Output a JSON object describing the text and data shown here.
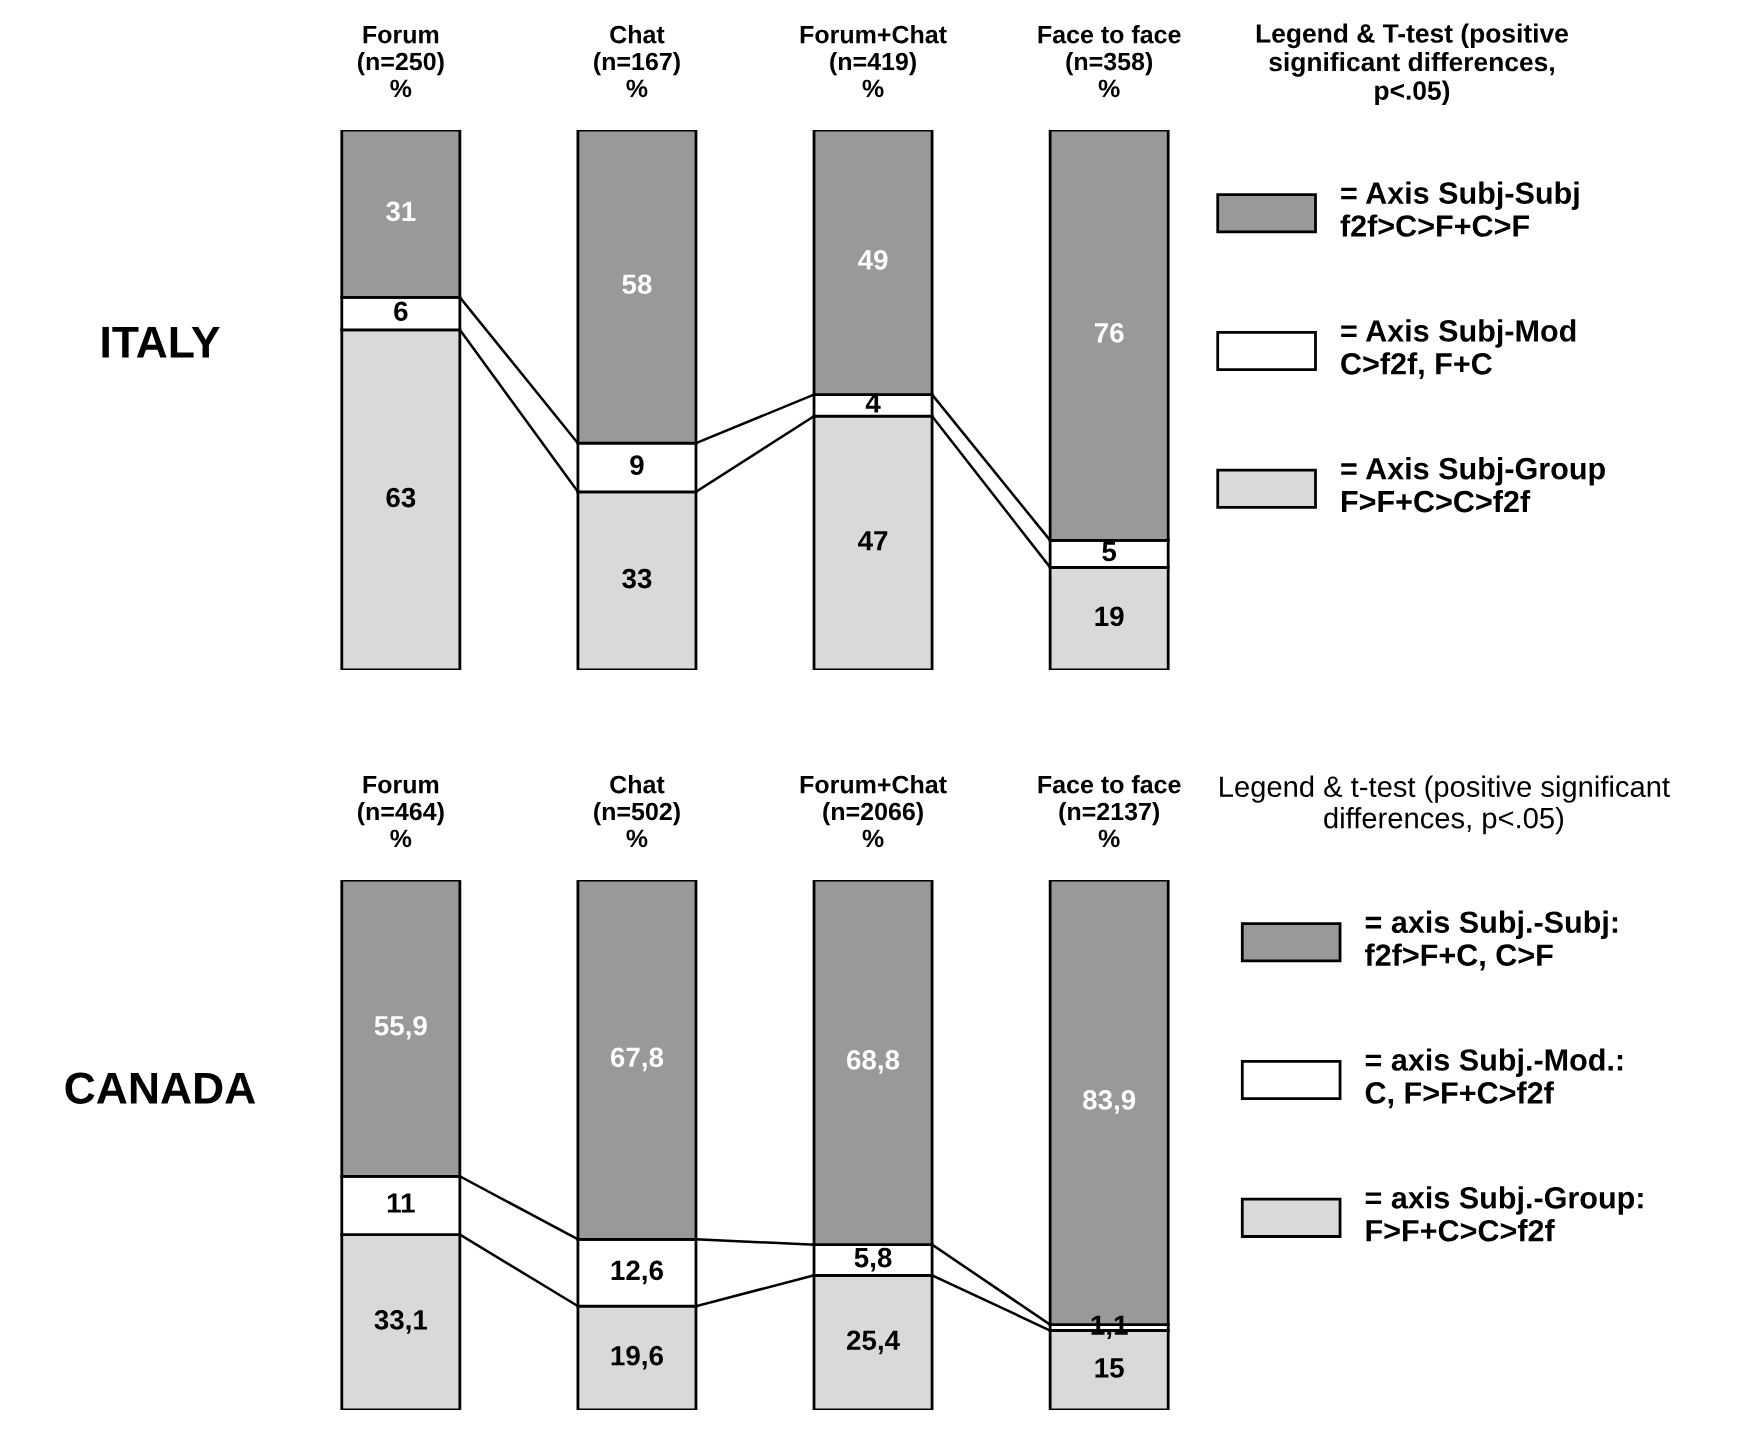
{
  "chart_data": [
    {
      "type": "bar",
      "stacked": true,
      "ylabel": "ITALY",
      "legend": "right",
      "legend_title": "Legend & T-test (positive\nsignificant differences,\np<.05)",
      "tick_labels": "x",
      "ylim": [
        0,
        100
      ],
      "categories": [
        "Forum\n(n=250)\n%",
        "Chat\n(n=167)\n%",
        "Forum+Chat\n(n=419)\n%",
        "Face to face\n(n=358)\n%"
      ],
      "series": [
        {
          "name": "= Axis Subj-Group\nF>F+C>C>f2f",
          "color": "#d9d9d9",
          "values": [
            63,
            33,
            47,
            19
          ],
          "value_labels": [
            "63",
            "33",
            "47",
            "19"
          ]
        },
        {
          "name": "= Axis Subj-Mod\nC>f2f, F+C",
          "color": "#ffffff",
          "values": [
            6,
            9,
            4,
            5
          ],
          "value_labels": [
            "6",
            "9",
            "4",
            "5"
          ]
        },
        {
          "name": "= Axis Subj-Subj\nf2f>C>F+C>F",
          "color": "#999999",
          "values": [
            31,
            58,
            49,
            76
          ],
          "value_labels": [
            "31",
            "58",
            "49",
            "76"
          ]
        }
      ]
    },
    {
      "type": "bar",
      "stacked": true,
      "ylabel": "CANADA",
      "legend": "right",
      "legend_title": "Legend & t-test (positive significant\ndifferences, p<.05)",
      "tick_labels": "x",
      "ylim": [
        0,
        100
      ],
      "categories": [
        "Forum\n(n=464)\n%",
        "Chat\n(n=502)\n%",
        "Forum+Chat\n(n=2066)\n%",
        "Face to face\n(n=2137)\n%"
      ],
      "series": [
        {
          "name": "= axis Subj.-Group:\nF>F+C>C>f2f",
          "color": "#d9d9d9",
          "values": [
            33.1,
            19.6,
            25.4,
            15
          ],
          "value_labels": [
            "33,1",
            "19,6",
            "25,4",
            "15"
          ]
        },
        {
          "name": "= axis Subj.-Mod.:\nC, F>F+C>f2f",
          "color": "#ffffff",
          "values": [
            11,
            12.6,
            5.8,
            1.1
          ],
          "value_labels": [
            "11",
            "12,6",
            "5,8",
            "1,1"
          ]
        },
        {
          "name": "= axis Subj.-Subj:\nf2f>F+C, C>F",
          "color": "#999999",
          "values": [
            55.9,
            67.8,
            68.8,
            83.9
          ],
          "value_labels": [
            "55,9",
            "67,8",
            "68,8",
            "83,9"
          ]
        }
      ]
    }
  ]
}
